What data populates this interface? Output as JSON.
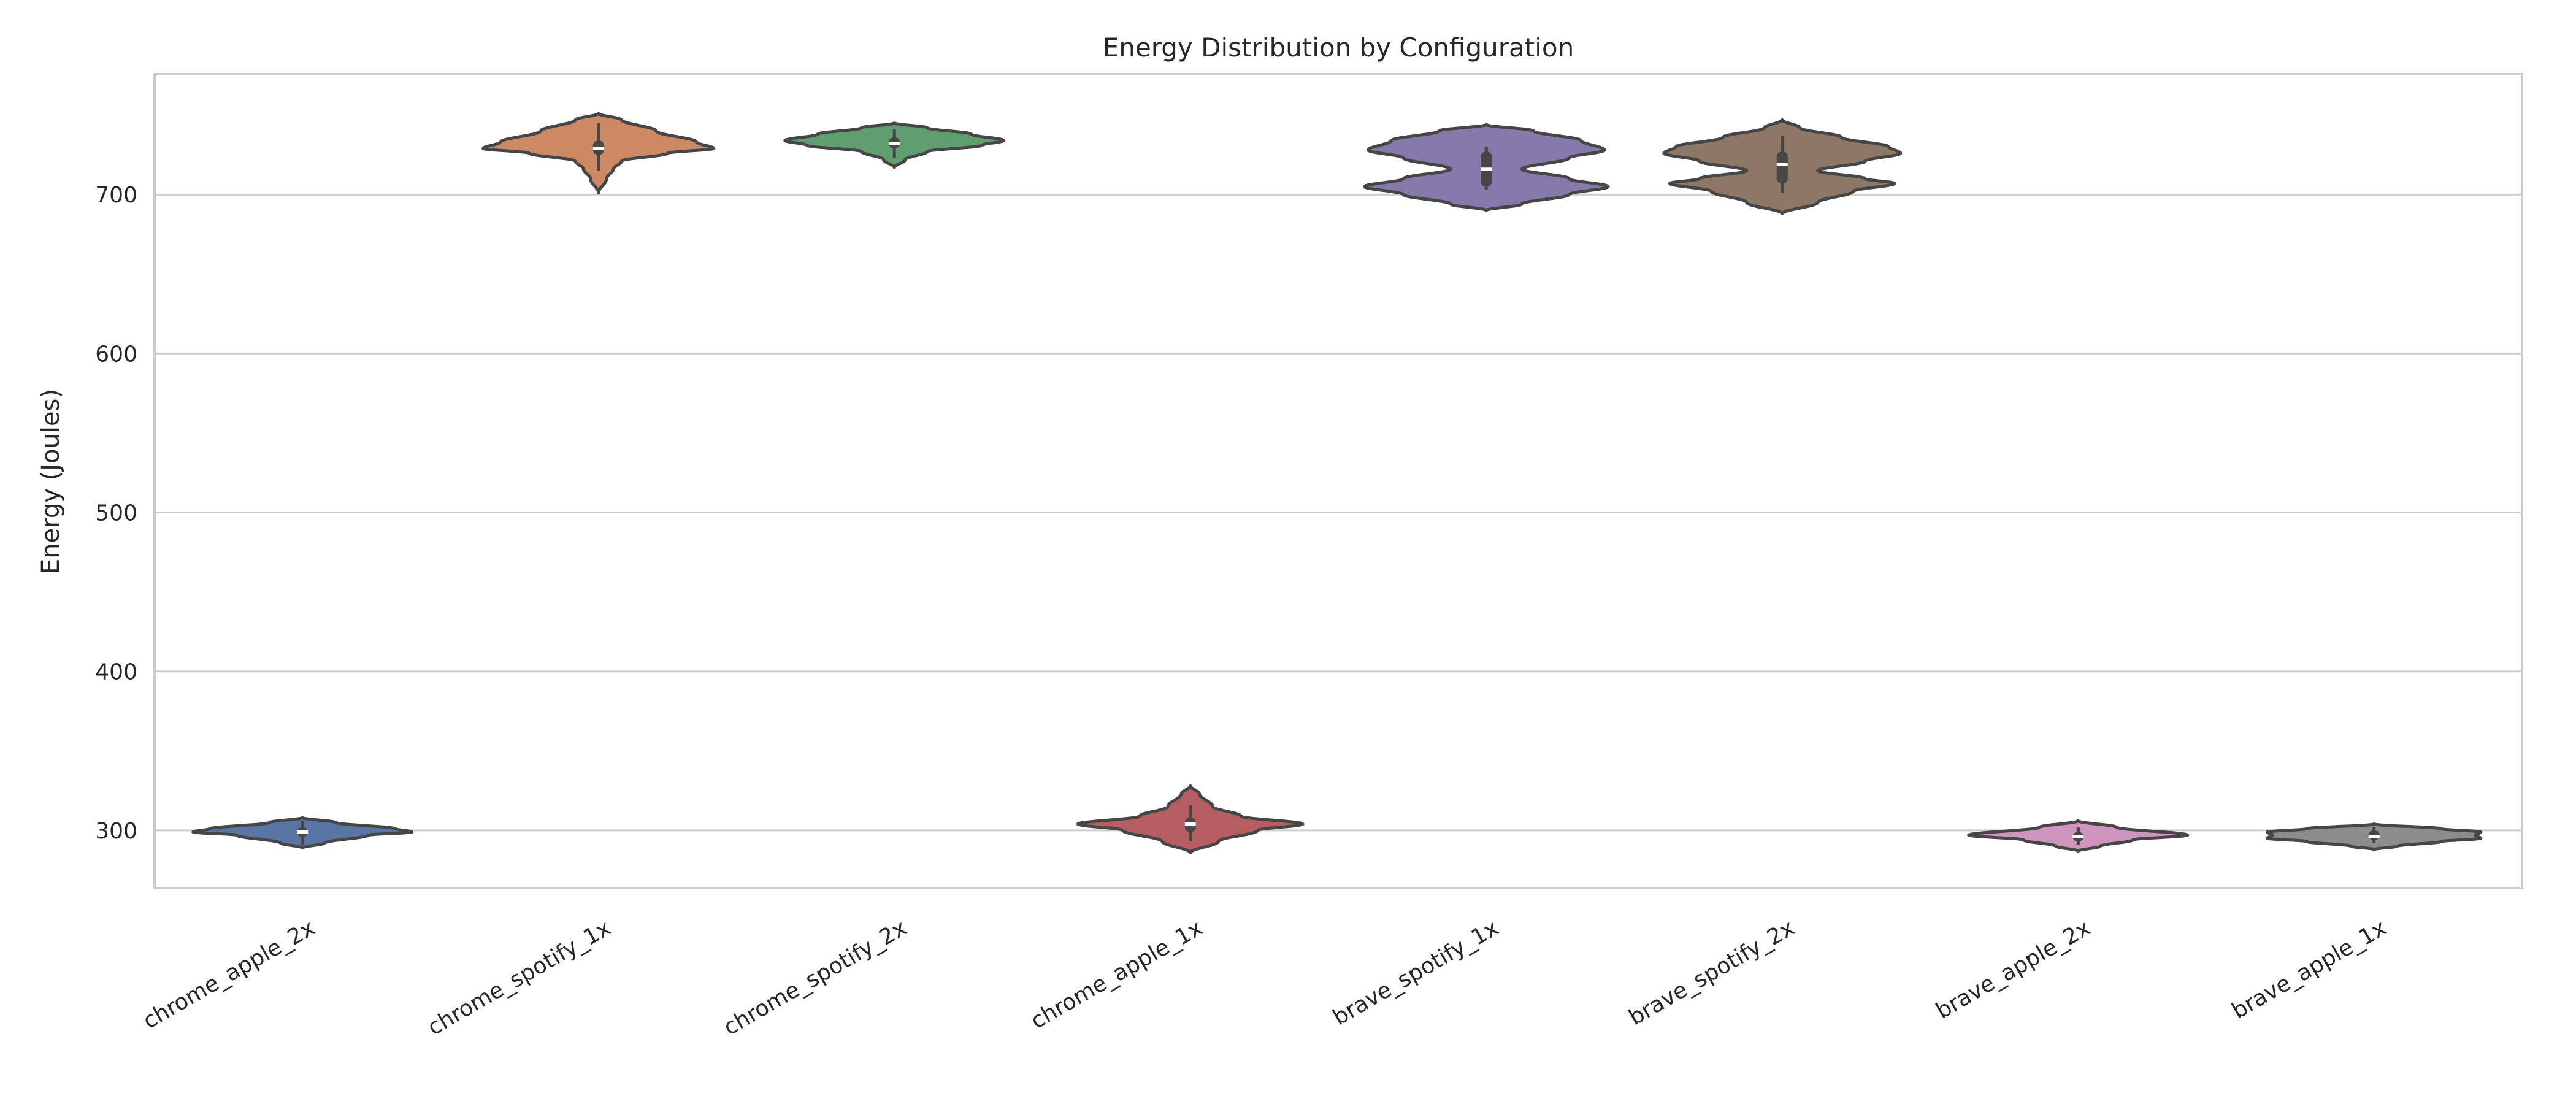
{
  "chart_data": {
    "type": "violin",
    "title": "Energy Distribution by Configuration",
    "xlabel": "",
    "ylabel": "Energy (Joules)",
    "ylim": [
      263.7,
      775.7
    ],
    "yticks": [
      300,
      400,
      500,
      600,
      700
    ],
    "grid": "horizontal",
    "categories": [
      "chrome_apple_2x",
      "chrome_spotify_1x",
      "chrome_spotify_2x",
      "chrome_apple_1x",
      "brave_spotify_1x",
      "brave_spotify_2x",
      "brave_apple_2x",
      "brave_apple_1x"
    ],
    "colors": [
      "#5975a4",
      "#cc8963",
      "#5f9e6e",
      "#b55d60",
      "#857aab",
      "#8d7866",
      "#d095bf",
      "#8c8c8c"
    ],
    "violins": [
      {
        "median": 299,
        "q1": 296,
        "q3": 302,
        "whisker_low": 291,
        "whisker_high": 306,
        "max_width": 0.37,
        "density": [
          [
            308,
            0
          ],
          [
            305,
            0.3
          ],
          [
            301,
            0.85
          ],
          [
            299,
            1
          ],
          [
            297,
            0.6
          ],
          [
            292,
            0.2
          ],
          [
            289,
            0
          ]
        ]
      },
      {
        "median": 729,
        "q1": 725,
        "q3": 734,
        "whisker_low": 715,
        "whisker_high": 745,
        "max_width": 0.39,
        "density": [
          [
            751,
            0
          ],
          [
            747,
            0.2
          ],
          [
            740,
            0.5
          ],
          [
            733,
            0.85
          ],
          [
            729,
            1
          ],
          [
            726,
            0.6
          ],
          [
            721,
            0.2
          ],
          [
            716,
            0.13
          ],
          [
            710,
            0.07
          ],
          [
            701,
            0
          ]
        ]
      },
      {
        "median": 732,
        "q1": 729,
        "q3": 736,
        "whisker_low": 723,
        "whisker_high": 741,
        "max_width": 0.37,
        "density": [
          [
            745,
            0
          ],
          [
            742,
            0.3
          ],
          [
            738,
            0.7
          ],
          [
            734,
            1
          ],
          [
            731,
            0.8
          ],
          [
            727,
            0.3
          ],
          [
            722,
            0.1
          ],
          [
            717,
            0
          ]
        ]
      },
      {
        "median": 304,
        "q1": 299,
        "q3": 308,
        "whisker_low": 293,
        "whisker_high": 316,
        "max_width": 0.38,
        "density": [
          [
            328,
            0
          ],
          [
            323,
            0.08
          ],
          [
            315,
            0.2
          ],
          [
            309,
            0.45
          ],
          [
            304,
            1
          ],
          [
            300,
            0.6
          ],
          [
            293,
            0.25
          ],
          [
            286,
            0
          ]
        ]
      },
      {
        "median": 716,
        "q1": 705,
        "q3": 727,
        "whisker_low": 703,
        "whisker_high": 730,
        "max_width": 0.4,
        "density": [
          [
            744,
            0
          ],
          [
            740,
            0.4
          ],
          [
            734,
            0.8
          ],
          [
            728,
            1
          ],
          [
            723,
            0.7
          ],
          [
            716,
            0.3
          ],
          [
            710,
            0.7
          ],
          [
            705,
            1.03
          ],
          [
            700,
            0.7
          ],
          [
            694,
            0.3
          ],
          [
            690,
            0
          ]
        ]
      },
      {
        "median": 719,
        "q1": 707,
        "q3": 727,
        "whisker_low": 701,
        "whisker_high": 737,
        "max_width": 0.4,
        "density": [
          [
            747,
            0
          ],
          [
            742,
            0.15
          ],
          [
            736,
            0.5
          ],
          [
            730,
            0.9
          ],
          [
            726,
            1
          ],
          [
            721,
            0.7
          ],
          [
            715,
            0.3
          ],
          [
            710,
            0.7
          ],
          [
            707,
            0.95
          ],
          [
            702,
            0.6
          ],
          [
            695,
            0.3
          ],
          [
            688,
            0
          ]
        ]
      },
      {
        "median": 296,
        "q1": 293,
        "q3": 299,
        "whisker_low": 291,
        "whisker_high": 302,
        "max_width": 0.37,
        "density": [
          [
            306,
            0
          ],
          [
            302,
            0.35
          ],
          [
            297,
            1
          ],
          [
            294,
            0.5
          ],
          [
            290,
            0.2
          ],
          [
            287,
            0
          ]
        ]
      },
      {
        "median": 296,
        "q1": 294,
        "q3": 300,
        "whisker_low": 292,
        "whisker_high": 302,
        "max_width": 0.38,
        "density": [
          [
            304,
            0
          ],
          [
            301,
            0.6
          ],
          [
            299,
            0.95
          ],
          [
            297,
            0.9
          ],
          [
            295,
            0.95
          ],
          [
            293,
            0.6
          ],
          [
            290,
            0.2
          ],
          [
            288,
            0
          ]
        ]
      }
    ]
  }
}
